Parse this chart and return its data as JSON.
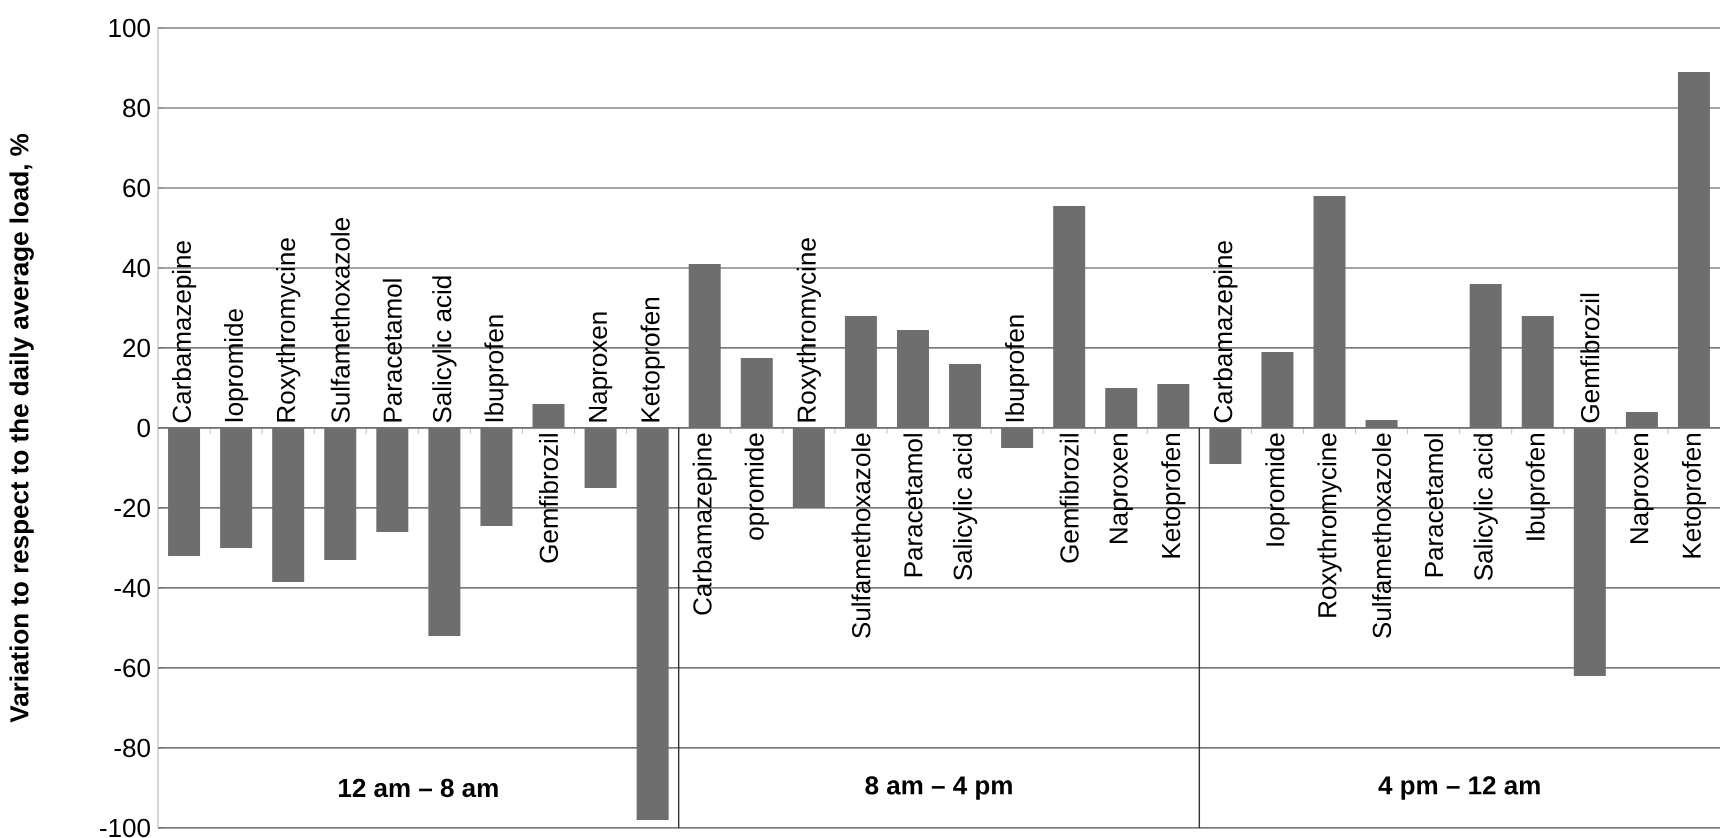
{
  "chart_data": {
    "type": "bar",
    "ylabel": "Variation to respect to the daily average load, %",
    "categories": [
      "Carbamazepine",
      "Iopromide",
      "Roxythromycine",
      "Sulfamethoxazole",
      "Paracetamol",
      "Salicylic acid",
      "Ibuprofen",
      "Gemfibrozil",
      "Naproxen",
      "Ketoprofen",
      "Carbamazepine",
      "opromide",
      "Roxythromycine",
      "Sulfamethoxazole",
      "Paracetamol",
      "Salicylic acid",
      "Ibuprofen",
      "Gemfibrozil",
      "Naproxen",
      "Ketoprofen",
      "Carbamazepine",
      "Iopromide",
      "Roxythromycine",
      "Sulfamethoxazole",
      "Paracetamol",
      "Salicylic acid",
      "Ibuprofen",
      "Gemfibrozil",
      "Naproxen",
      "Ketoprofen"
    ],
    "values": [
      -32,
      -30,
      -38.5,
      -33,
      -26,
      -52,
      -24.5,
      6,
      -15,
      -98,
      41,
      17.5,
      -20,
      28,
      24.5,
      16,
      -5,
      55.5,
      10,
      11,
      -9,
      19,
      58,
      2,
      0,
      36,
      28,
      -62,
      4,
      89
    ],
    "color": "#6e6e6e",
    "ylim": [
      -100,
      100
    ],
    "yticks": [
      -100,
      -80,
      -60,
      -40,
      -20,
      0,
      20,
      40,
      60,
      80,
      100
    ],
    "grid": "y",
    "annotations": [
      "12 am – 8 am",
      "8 am – 4 pm",
      "4 pm – 12 am"
    ]
  }
}
